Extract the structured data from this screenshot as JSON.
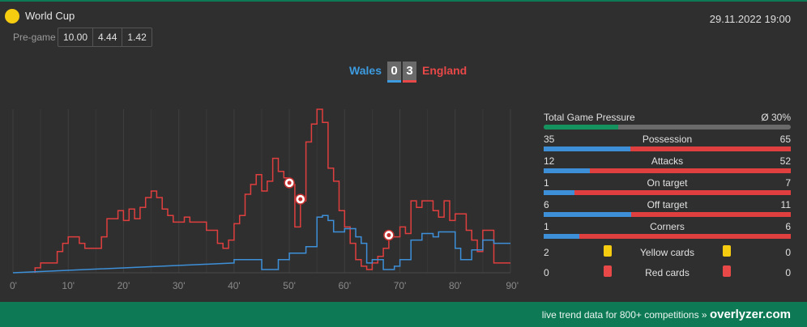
{
  "header": {
    "league": "World Cup",
    "datetime": "29.11.2022 19:00",
    "pregame_label": "Pre-game",
    "odds": [
      "10.00",
      "4.44",
      "1.42"
    ]
  },
  "match": {
    "home": "Wales",
    "away": "England",
    "home_goals": "0",
    "away_goals": "3"
  },
  "stats": {
    "pressure": {
      "label": "Total Game Pressure",
      "value": "Ø 30%",
      "percent": 30
    },
    "rows": [
      {
        "name": "Possession",
        "home": "35",
        "away": "65"
      },
      {
        "name": "Attacks",
        "home": "12",
        "away": "52"
      },
      {
        "name": "On target",
        "home": "1",
        "away": "7"
      },
      {
        "name": "Off target",
        "home": "6",
        "away": "11"
      },
      {
        "name": "Corners",
        "home": "1",
        "away": "6"
      }
    ],
    "yellow": {
      "name": "Yellow cards",
      "home": "2",
      "away": "0"
    },
    "red": {
      "name": "Red cards",
      "home": "0",
      "away": "0"
    }
  },
  "colors": {
    "home": "#3d8fd8",
    "away": "#e03f3f",
    "brand": "#0e7a55",
    "yellow": "#f5cc10",
    "red": "#e84848"
  },
  "chart_data": {
    "type": "line",
    "x_ticks": [
      "0'",
      "10'",
      "20'",
      "30'",
      "40'",
      "50'",
      "60'",
      "70'",
      "80'",
      "90'"
    ],
    "xlim": [
      0,
      90
    ],
    "ylim": [
      0,
      100
    ],
    "grid": true,
    "series": [
      {
        "name": "England",
        "color": "#e03f3f",
        "points": [
          [
            4,
            0
          ],
          [
            4,
            3
          ],
          [
            5,
            3
          ],
          [
            5,
            6
          ],
          [
            8,
            6
          ],
          [
            8,
            13
          ],
          [
            9,
            13
          ],
          [
            9,
            18
          ],
          [
            10,
            18
          ],
          [
            10,
            22
          ],
          [
            12,
            22
          ],
          [
            12,
            18
          ],
          [
            13,
            18
          ],
          [
            13,
            15
          ],
          [
            16,
            15
          ],
          [
            16,
            22
          ],
          [
            17,
            22
          ],
          [
            17,
            33
          ],
          [
            19,
            33
          ],
          [
            19,
            38
          ],
          [
            20,
            38
          ],
          [
            20,
            32
          ],
          [
            21,
            32
          ],
          [
            21,
            39
          ],
          [
            22,
            39
          ],
          [
            22,
            33
          ],
          [
            23,
            33
          ],
          [
            23,
            40
          ],
          [
            24,
            40
          ],
          [
            24,
            46
          ],
          [
            25,
            46
          ],
          [
            25,
            50
          ],
          [
            26,
            50
          ],
          [
            26,
            46
          ],
          [
            27,
            46
          ],
          [
            27,
            39
          ],
          [
            28,
            39
          ],
          [
            28,
            35
          ],
          [
            29,
            35
          ],
          [
            29,
            31
          ],
          [
            31,
            31
          ],
          [
            31,
            34
          ],
          [
            32,
            34
          ],
          [
            32,
            31
          ],
          [
            35,
            31
          ],
          [
            35,
            26
          ],
          [
            37,
            26
          ],
          [
            37,
            18
          ],
          [
            38,
            18
          ],
          [
            38,
            15
          ],
          [
            39,
            15
          ],
          [
            39,
            20
          ],
          [
            40,
            20
          ],
          [
            40,
            30
          ],
          [
            41,
            30
          ],
          [
            41,
            35
          ],
          [
            42,
            35
          ],
          [
            42,
            48
          ],
          [
            43,
            48
          ],
          [
            43,
            54
          ],
          [
            44,
            54
          ],
          [
            44,
            60
          ],
          [
            45,
            60
          ],
          [
            45,
            50
          ],
          [
            46,
            50
          ],
          [
            46,
            56
          ],
          [
            47,
            56
          ],
          [
            47,
            70
          ],
          [
            48,
            70
          ],
          [
            48,
            62
          ],
          [
            49,
            62
          ],
          [
            49,
            58
          ],
          [
            50,
            58
          ],
          [
            50,
            54
          ],
          [
            51,
            54
          ],
          [
            51,
            28
          ],
          [
            52,
            28
          ],
          [
            52,
            44
          ],
          [
            53,
            44
          ],
          [
            53,
            80
          ],
          [
            54,
            80
          ],
          [
            54,
            91
          ],
          [
            55,
            91
          ],
          [
            55,
            100
          ],
          [
            56,
            100
          ],
          [
            56,
            92
          ],
          [
            57,
            92
          ],
          [
            57,
            64
          ],
          [
            58,
            64
          ],
          [
            58,
            56
          ],
          [
            59,
            56
          ],
          [
            59,
            38
          ],
          [
            60,
            38
          ],
          [
            60,
            28
          ],
          [
            61,
            28
          ],
          [
            61,
            18
          ],
          [
            62,
            18
          ],
          [
            62,
            8
          ],
          [
            63,
            8
          ],
          [
            63,
            4
          ],
          [
            64,
            4
          ],
          [
            64,
            2
          ],
          [
            65,
            2
          ],
          [
            65,
            6
          ],
          [
            66,
            6
          ],
          [
            66,
            10
          ],
          [
            67,
            10
          ],
          [
            67,
            15
          ],
          [
            68,
            15
          ],
          [
            68,
            22
          ],
          [
            70,
            22
          ],
          [
            70,
            28
          ],
          [
            71,
            28
          ],
          [
            71,
            24
          ],
          [
            72,
            24
          ],
          [
            72,
            44
          ],
          [
            73,
            44
          ],
          [
            73,
            40
          ],
          [
            74,
            40
          ],
          [
            74,
            44
          ],
          [
            76,
            44
          ],
          [
            76,
            38
          ],
          [
            77,
            38
          ],
          [
            77,
            34
          ],
          [
            78,
            34
          ],
          [
            78,
            44
          ],
          [
            79,
            44
          ],
          [
            79,
            32
          ],
          [
            80,
            32
          ],
          [
            80,
            36
          ],
          [
            82,
            36
          ],
          [
            82,
            26
          ],
          [
            83,
            26
          ],
          [
            83,
            20
          ],
          [
            84,
            20
          ],
          [
            84,
            13
          ],
          [
            85,
            13
          ],
          [
            85,
            26
          ],
          [
            87,
            26
          ],
          [
            87,
            6
          ],
          [
            90,
            6
          ]
        ]
      },
      {
        "name": "Wales",
        "color": "#3d8fd8",
        "points": [
          [
            0,
            0
          ],
          [
            40,
            6
          ],
          [
            40,
            8
          ],
          [
            45,
            8
          ],
          [
            45,
            2
          ],
          [
            48,
            2
          ],
          [
            48,
            8
          ],
          [
            50,
            8
          ],
          [
            50,
            12
          ],
          [
            53,
            12
          ],
          [
            53,
            16
          ],
          [
            55,
            16
          ],
          [
            55,
            34
          ],
          [
            56,
            34
          ],
          [
            56,
            35
          ],
          [
            57,
            35
          ],
          [
            57,
            32
          ],
          [
            58,
            32
          ],
          [
            58,
            25
          ],
          [
            60,
            25
          ],
          [
            60,
            27
          ],
          [
            62,
            27
          ],
          [
            62,
            22
          ],
          [
            63,
            22
          ],
          [
            63,
            18
          ],
          [
            64,
            18
          ],
          [
            64,
            6
          ],
          [
            65,
            6
          ],
          [
            65,
            8
          ],
          [
            67,
            8
          ],
          [
            67,
            2
          ],
          [
            69,
            2
          ],
          [
            69,
            4
          ],
          [
            70,
            4
          ],
          [
            70,
            8
          ],
          [
            72,
            8
          ],
          [
            72,
            20
          ],
          [
            74,
            20
          ],
          [
            74,
            24
          ],
          [
            76,
            24
          ],
          [
            76,
            22
          ],
          [
            77,
            22
          ],
          [
            77,
            25
          ],
          [
            80,
            25
          ],
          [
            80,
            15
          ],
          [
            81,
            15
          ],
          [
            81,
            8
          ],
          [
            83,
            8
          ],
          [
            83,
            14
          ],
          [
            85,
            14
          ],
          [
            85,
            20
          ],
          [
            87,
            20
          ],
          [
            87,
            18
          ],
          [
            90,
            18
          ]
        ]
      }
    ],
    "goals": [
      {
        "team": "England",
        "minute": 50
      },
      {
        "team": "England",
        "minute": 52
      },
      {
        "team": "England",
        "minute": 68
      }
    ]
  },
  "footer": {
    "text": "live trend data for 800+ competitions »",
    "brand": "overlyzer.com"
  }
}
